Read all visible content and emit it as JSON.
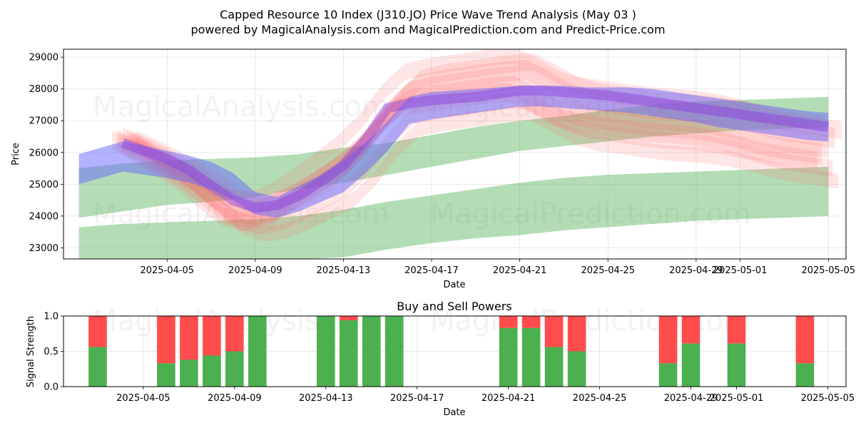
{
  "chart_data": [
    {
      "type": "area",
      "title_line1": "Capped Resource 10 Index (J310.JO) Price Wave Trend Analysis (May 03 )",
      "title_line2": "powered by MagicalAnalysis.com and MagicalPrediction.com and Predict-Price.com",
      "xlabel": "Date",
      "ylabel": "Price",
      "ylim": [
        22650,
        29250
      ],
      "xlim": [
        -2.7,
        32.8
      ],
      "grid": true,
      "x_ticks": [
        {
          "x": 2,
          "label": "2025-04-05"
        },
        {
          "x": 6,
          "label": "2025-04-09"
        },
        {
          "x": 10,
          "label": "2025-04-13"
        },
        {
          "x": 14,
          "label": "2025-04-17"
        },
        {
          "x": 18,
          "label": "2025-04-21"
        },
        {
          "x": 22,
          "label": "2025-04-25"
        },
        {
          "x": 26,
          "label": "2025-04-29"
        },
        {
          "x": 28,
          "label": "2025-05-01"
        },
        {
          "x": 32,
          "label": "2025-05-05"
        }
      ],
      "y_ticks": [
        23000,
        24000,
        25000,
        26000,
        27000,
        28000,
        29000
      ],
      "watermarks": [
        "MagicalAnalysis.com",
        "MagicalPrediction.com"
      ],
      "green_bands": [
        {
          "x": [
            -2,
            0,
            2,
            4,
            6,
            8,
            10,
            12,
            14,
            16,
            18,
            20,
            22,
            24,
            26,
            28,
            30,
            32
          ],
          "upper": [
            25500,
            25650,
            25750,
            25800,
            25850,
            25950,
            26150,
            26300,
            26550,
            26800,
            27000,
            27150,
            27350,
            27500,
            27600,
            27650,
            27700,
            27750
          ],
          "lower": [
            23950,
            24150,
            24350,
            24450,
            24600,
            24850,
            25050,
            25300,
            25550,
            25800,
            26050,
            26200,
            26350,
            26500,
            26600,
            26700,
            26750,
            26800
          ]
        },
        {
          "x": [
            -2,
            0,
            2,
            4,
            6,
            8,
            10,
            12,
            14,
            16,
            18,
            20,
            22,
            24,
            26,
            28,
            30,
            32
          ],
          "upper": [
            23650,
            23750,
            23800,
            23850,
            23900,
            24000,
            24200,
            24450,
            24650,
            24850,
            25050,
            25200,
            25300,
            25350,
            25400,
            25450,
            25500,
            25550
          ],
          "lower": [
            22650,
            22650,
            22650,
            22650,
            22650,
            22650,
            22700,
            22950,
            23150,
            23300,
            23400,
            23550,
            23650,
            23750,
            23850,
            23900,
            23950,
            24000
          ]
        }
      ],
      "blue_bands": [
        {
          "x": [
            -2,
            -1,
            0,
            1,
            2,
            3,
            4,
            5,
            6,
            7,
            8,
            9,
            10,
            11,
            12,
            13,
            14,
            15,
            16,
            17,
            18,
            19,
            20,
            21,
            22,
            23,
            24,
            25,
            26,
            27,
            28,
            29,
            30,
            31,
            32
          ],
          "upper": [
            25950,
            26150,
            26350,
            26200,
            26050,
            25900,
            25700,
            25350,
            24750,
            24600,
            24950,
            25300,
            25750,
            26300,
            27000,
            27750,
            27900,
            27950,
            28000,
            28050,
            28100,
            28100,
            28100,
            28050,
            28050,
            28050,
            28000,
            27900,
            27800,
            27700,
            27600,
            27500,
            27400,
            27300,
            27250
          ],
          "lower": [
            25000,
            25200,
            25400,
            25300,
            25200,
            25050,
            24850,
            24500,
            24050,
            23950,
            24150,
            24450,
            24750,
            25350,
            26050,
            26900,
            27050,
            27150,
            27250,
            27350,
            27450,
            27450,
            27400,
            27350,
            27300,
            27250,
            27150,
            27050,
            26950,
            26800,
            26700,
            26600,
            26500,
            26400,
            26350
          ]
        }
      ],
      "red_centers": {
        "x": [
          0,
          1,
          2,
          3,
          4,
          5,
          6,
          7,
          8,
          9,
          10,
          11,
          12,
          13,
          14,
          15,
          16,
          17,
          18,
          19,
          20,
          21,
          22,
          23,
          24,
          25,
          26,
          27,
          28,
          29,
          30,
          31,
          32
        ],
        "y": [
          26400,
          26050,
          25650,
          25250,
          24700,
          24200,
          24100,
          24300,
          24700,
          25150,
          25600,
          26300,
          27200,
          27850,
          28000,
          28100,
          28200,
          28300,
          28350,
          28000,
          27600,
          27400,
          27300,
          27200,
          27100,
          27050,
          27000,
          26900,
          26750,
          26550,
          26400,
          26300,
          26200
        ]
      },
      "purple_line": {
        "x": [
          0,
          1,
          2,
          3,
          4,
          5,
          6,
          7,
          8,
          9,
          10,
          11,
          12,
          13,
          14,
          15,
          16,
          17,
          18,
          19,
          20,
          21,
          22,
          23,
          24,
          25,
          26,
          27,
          28,
          29,
          30,
          31,
          32
        ],
        "y": [
          26300,
          26050,
          25800,
          25450,
          24950,
          24500,
          24250,
          24350,
          24650,
          25100,
          25600,
          26400,
          27400,
          27550,
          27650,
          27700,
          27750,
          27850,
          27950,
          27950,
          27900,
          27850,
          27800,
          27700,
          27600,
          27500,
          27400,
          27300,
          27200,
          27100,
          27000,
          26900,
          26800
        ]
      }
    },
    {
      "type": "bar",
      "title": "Buy and Sell Powers",
      "xlabel": "Date",
      "ylabel": "Signal Strength",
      "ylim": [
        0,
        1
      ],
      "xlim": [
        -1.5,
        32.8
      ],
      "grid": true,
      "y_ticks": [
        "0.0",
        "0.5",
        "1.0"
      ],
      "x_ticks": [
        {
          "x": 2,
          "label": "2025-04-05"
        },
        {
          "x": 6,
          "label": "2025-04-09"
        },
        {
          "x": 10,
          "label": "2025-04-13"
        },
        {
          "x": 14,
          "label": "2025-04-17"
        },
        {
          "x": 18,
          "label": "2025-04-21"
        },
        {
          "x": 22,
          "label": "2025-04-25"
        },
        {
          "x": 26,
          "label": "2025-04-29"
        },
        {
          "x": 28,
          "label": "2025-05-01"
        },
        {
          "x": 32,
          "label": "2025-05-05"
        }
      ],
      "watermarks": [
        "MagicalAnalysis.com",
        "MagicalPrediction.com"
      ],
      "bars": [
        {
          "x": 0,
          "buy": 0.56
        },
        {
          "x": 3,
          "buy": 0.33
        },
        {
          "x": 4,
          "buy": 0.38
        },
        {
          "x": 5,
          "buy": 0.44
        },
        {
          "x": 6,
          "buy": 0.5
        },
        {
          "x": 7,
          "buy": 1.0
        },
        {
          "x": 10,
          "buy": 1.0
        },
        {
          "x": 11,
          "buy": 0.94
        },
        {
          "x": 12,
          "buy": 1.0
        },
        {
          "x": 13,
          "buy": 1.0
        },
        {
          "x": 18,
          "buy": 0.83
        },
        {
          "x": 19,
          "buy": 0.83
        },
        {
          "x": 20,
          "buy": 0.56
        },
        {
          "x": 21,
          "buy": 0.5
        },
        {
          "x": 25,
          "buy": 0.33
        },
        {
          "x": 26,
          "buy": 0.61
        },
        {
          "x": 28,
          "buy": 0.61
        },
        {
          "x": 31,
          "buy": 0.33
        }
      ],
      "colors": {
        "buy": "#4caf50",
        "sell": "#ff4c4c"
      }
    }
  ],
  "colors": {
    "green_band": "#4caf50",
    "blue_band": "#6666ff",
    "red_band": "#ff6666",
    "purple": "#8a3de0"
  }
}
